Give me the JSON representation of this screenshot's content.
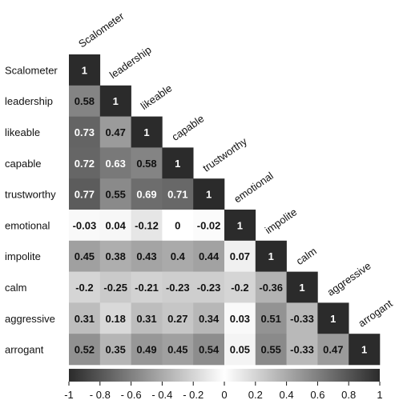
{
  "chart_data": {
    "type": "heatmap",
    "variables": [
      "Scalometer",
      "leadership",
      "likeable",
      "capable",
      "trustworthy",
      "emotional",
      "impolite",
      "calm",
      "aggressive",
      "arrogant"
    ],
    "matrix": [
      [
        1
      ],
      [
        0.58,
        1
      ],
      [
        0.73,
        0.47,
        1
      ],
      [
        0.72,
        0.63,
        0.58,
        1
      ],
      [
        0.77,
        0.55,
        0.69,
        0.71,
        1
      ],
      [
        -0.03,
        0.04,
        -0.12,
        0,
        -0.02,
        1
      ],
      [
        0.45,
        0.38,
        0.43,
        0.4,
        0.44,
        0.07,
        1
      ],
      [
        -0.2,
        -0.25,
        -0.21,
        -0.23,
        -0.23,
        -0.2,
        -0.36,
        1
      ],
      [
        0.31,
        0.18,
        0.31,
        0.27,
        0.34,
        0.03,
        0.51,
        -0.33,
        1
      ],
      [
        0.52,
        0.35,
        0.49,
        0.45,
        0.54,
        0.05,
        0.55,
        -0.33,
        0.47,
        1
      ]
    ],
    "value_labels": [
      [
        "1"
      ],
      [
        "0.58",
        "1"
      ],
      [
        "0.73",
        "0.47",
        "1"
      ],
      [
        "0.72",
        "0.63",
        "0.58",
        "1"
      ],
      [
        "0.77",
        "0.55",
        "0.69",
        "0.71",
        "1"
      ],
      [
        "-0.03",
        "0.04",
        "-0.12",
        "0",
        "-0.02",
        "1"
      ],
      [
        "0.45",
        "0.38",
        "0.43",
        "0.4",
        "0.44",
        "0.07",
        "1"
      ],
      [
        "-0.2",
        "-0.25",
        "-0.21",
        "-0.23",
        "-0.23",
        "-0.2",
        "-0.36",
        "1"
      ],
      [
        "0.31",
        "0.18",
        "0.31",
        "0.27",
        "0.34",
        "0.03",
        "0.51",
        "-0.33",
        "1"
      ],
      [
        "0.52",
        "0.35",
        "0.49",
        "0.45",
        "0.54",
        "0.05",
        "0.55",
        "-0.33",
        "0.47",
        "1"
      ]
    ],
    "triangle": "lower",
    "colorbar": {
      "range": [
        -1,
        1
      ],
      "ticks": [
        -1,
        -0.8,
        -0.6,
        -0.4,
        -0.2,
        0,
        0.2,
        0.4,
        0.6,
        0.8,
        1
      ],
      "tick_labels": [
        "-1",
        "- 0.8",
        "- 0.6",
        "- 0.4",
        "- 0.2",
        "0",
        "0.2",
        "0.4",
        "0.6",
        "0.8",
        "1"
      ],
      "colors": [
        "#2b2b2b",
        "#ffffff",
        "#2b2b2b"
      ]
    },
    "title": "",
    "xlabel": "",
    "ylabel": ""
  }
}
